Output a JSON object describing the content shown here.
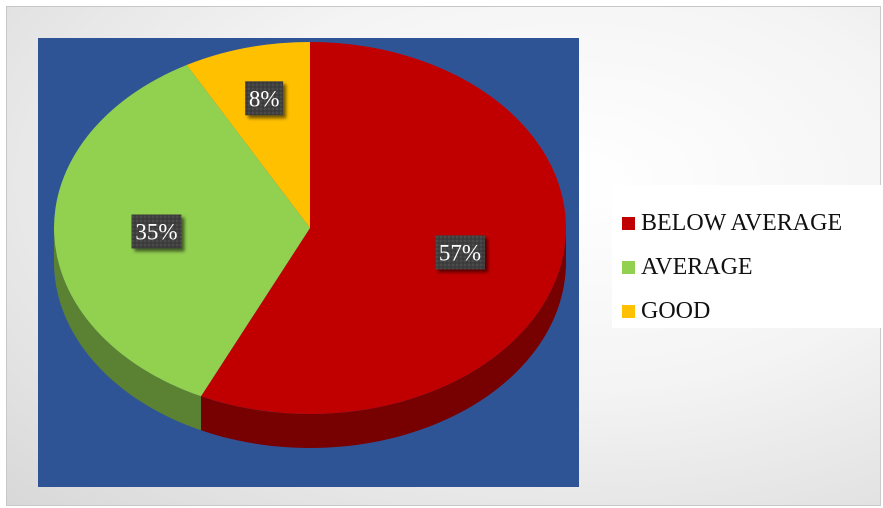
{
  "chart_data": {
    "type": "pie",
    "title": "",
    "categories": [
      "BELOW AVERAGE",
      "AVERAGE",
      "GOOD"
    ],
    "values": [
      57,
      35,
      8
    ],
    "labels": [
      "57%",
      "35%",
      "8%"
    ],
    "colors": [
      "#c00000",
      "#92d050",
      "#ffc000"
    ],
    "style": "3d",
    "legend_position": "right",
    "plot_background": "#2f5496",
    "label_box_color": "#404040"
  }
}
